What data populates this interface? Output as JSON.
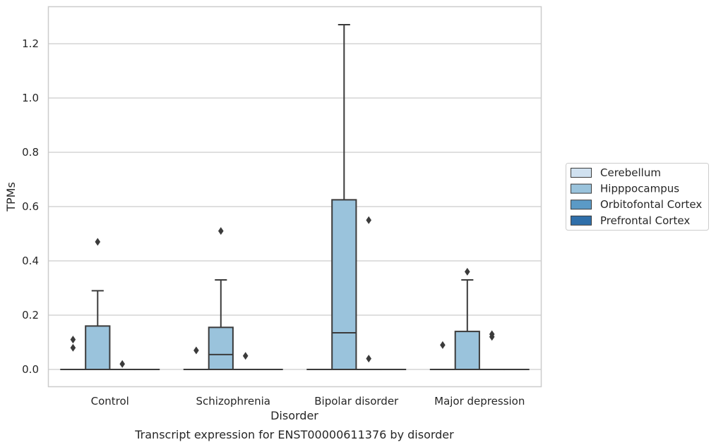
{
  "chart_data": {
    "type": "box",
    "caption": "Transcript expression for ENST00000611376 by disorder",
    "xlabel": "Disorder",
    "ylabel": "TPMs",
    "ylim": [
      -0.062,
      1.35
    ],
    "yticks": [
      0.0,
      0.2,
      0.4,
      0.6,
      0.8,
      1.0,
      1.2
    ],
    "ytick_labels": [
      "0.0",
      "0.2",
      "0.4",
      "0.6",
      "0.8",
      "1.0",
      "1.2"
    ],
    "grid": "horizontal",
    "legend_position": "right",
    "categories": [
      "Control",
      "Schizophrenia",
      "Bipolar disorder",
      "Major depression"
    ],
    "series": [
      {
        "name": "Cerebellum",
        "color": "#d0e1f0",
        "boxes": [
          {
            "q1": 0,
            "median": 0,
            "q3": 0,
            "whisker_low": 0,
            "whisker_high": 0,
            "outliers": [
              0.11,
              0.08
            ]
          },
          {
            "q1": 0,
            "median": 0,
            "q3": 0,
            "whisker_low": 0,
            "whisker_high": 0,
            "outliers": [
              0.07
            ]
          },
          {
            "q1": 0,
            "median": 0,
            "q3": 0,
            "whisker_low": 0,
            "whisker_high": 0,
            "outliers": []
          },
          {
            "q1": 0,
            "median": 0,
            "q3": 0,
            "whisker_low": 0,
            "whisker_high": 0,
            "outliers": [
              0.09
            ]
          }
        ]
      },
      {
        "name": "Hipppocampus",
        "color": "#9ac3dc",
        "boxes": [
          {
            "q1": 0,
            "median": 0,
            "q3": 0.16,
            "whisker_low": 0,
            "whisker_high": 0.29,
            "outliers": [
              0.47
            ]
          },
          {
            "q1": 0,
            "median": 0.055,
            "q3": 0.155,
            "whisker_low": 0,
            "whisker_high": 0.33,
            "outliers": [
              0.51
            ]
          },
          {
            "q1": 0,
            "median": 0.135,
            "q3": 0.625,
            "whisker_low": 0,
            "whisker_high": 1.27,
            "outliers": []
          },
          {
            "q1": 0,
            "median": 0,
            "q3": 0.14,
            "whisker_low": 0,
            "whisker_high": 0.33,
            "outliers": [
              0.36
            ]
          }
        ]
      },
      {
        "name": "Orbitofontal Cortex",
        "color": "#5b9ac6",
        "boxes": [
          {
            "q1": 0,
            "median": 0,
            "q3": 0,
            "whisker_low": 0,
            "whisker_high": 0,
            "outliers": [
              0.02
            ]
          },
          {
            "q1": 0,
            "median": 0,
            "q3": 0,
            "whisker_low": 0,
            "whisker_high": 0,
            "outliers": [
              0.05
            ]
          },
          {
            "q1": 0,
            "median": 0,
            "q3": 0,
            "whisker_low": 0,
            "whisker_high": 0,
            "outliers": [
              0.55,
              0.04
            ]
          },
          {
            "q1": 0,
            "median": 0,
            "q3": 0,
            "whisker_low": 0,
            "whisker_high": 0,
            "outliers": [
              0.13,
              0.12
            ]
          }
        ]
      },
      {
        "name": "Prefrontal Cortex",
        "color": "#2f6faa",
        "boxes": [
          {
            "q1": 0,
            "median": 0,
            "q3": 0,
            "whisker_low": 0,
            "whisker_high": 0,
            "outliers": []
          },
          {
            "q1": 0,
            "median": 0,
            "q3": 0,
            "whisker_low": 0,
            "whisker_high": 0,
            "outliers": []
          },
          {
            "q1": 0,
            "median": 0,
            "q3": 0,
            "whisker_low": 0,
            "whisker_high": 0,
            "outliers": []
          },
          {
            "q1": 0,
            "median": 0,
            "q3": 0,
            "whisker_low": 0,
            "whisker_high": 0,
            "outliers": []
          }
        ]
      }
    ]
  }
}
